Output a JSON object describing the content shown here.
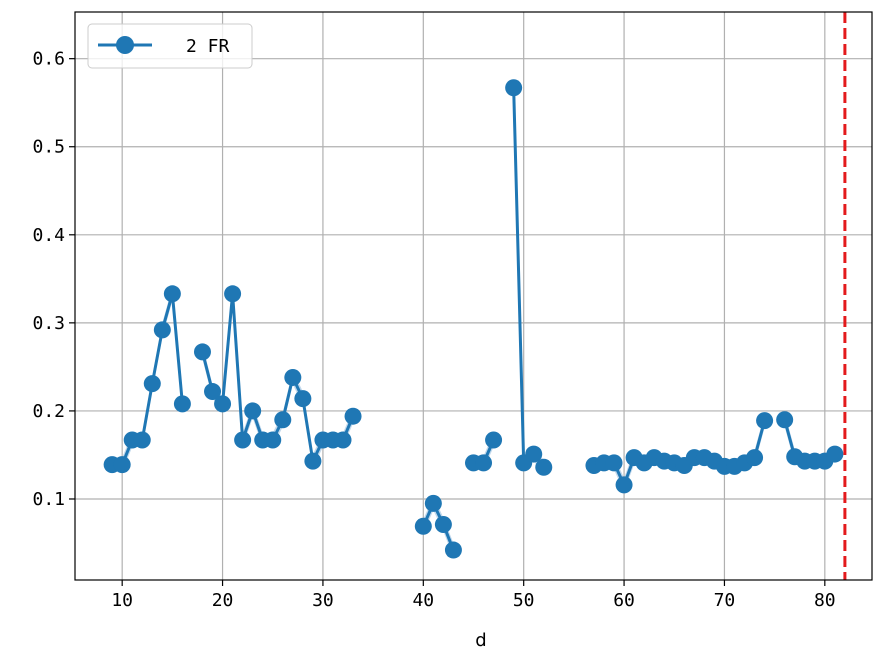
{
  "chart_data": {
    "type": "line",
    "xlabel": "d",
    "ylabel": "",
    "xlim": [
      5.3,
      84.7
    ],
    "ylim": [
      0.008,
      0.653
    ],
    "xticks": [
      10,
      20,
      30,
      40,
      50,
      60,
      70,
      80
    ],
    "yticks": [
      0.1,
      0.2,
      0.3,
      0.4,
      0.5,
      0.6
    ],
    "xtick_labels": [
      "10",
      "20",
      "30",
      "40",
      "50",
      "60",
      "70",
      "80"
    ],
    "ytick_labels": [
      "0.1",
      "0.2",
      "0.3",
      "0.4",
      "0.5",
      "0.6"
    ],
    "grid": true,
    "legend_position": "top-left",
    "vline": {
      "x": 82,
      "color": "#e31a1c",
      "style": "dashed"
    },
    "series": [
      {
        "name": "2 FR",
        "color": "#1f77b4",
        "band_color": "#a6c8e4",
        "segments": [
          [
            {
              "x": 9,
              "y": 0.139
            },
            {
              "x": 10,
              "y": 0.139
            },
            {
              "x": 11,
              "y": 0.167
            },
            {
              "x": 12,
              "y": 0.167
            },
            {
              "x": 13,
              "y": 0.231
            },
            {
              "x": 14,
              "y": 0.292
            },
            {
              "x": 15,
              "y": 0.333
            },
            {
              "x": 16,
              "y": 0.208
            }
          ],
          [
            {
              "x": 18,
              "y": 0.267
            },
            {
              "x": 19,
              "y": 0.222
            },
            {
              "x": 20,
              "y": 0.208
            },
            {
              "x": 21,
              "y": 0.333
            },
            {
              "x": 22,
              "y": 0.167
            },
            {
              "x": 23,
              "y": 0.2
            },
            {
              "x": 24,
              "y": 0.167
            },
            {
              "x": 25,
              "y": 0.167
            },
            {
              "x": 26,
              "y": 0.19
            },
            {
              "x": 27,
              "y": 0.238
            },
            {
              "x": 28,
              "y": 0.214
            },
            {
              "x": 29,
              "y": 0.143
            },
            {
              "x": 30,
              "y": 0.167
            },
            {
              "x": 31,
              "y": 0.167
            },
            {
              "x": 32,
              "y": 0.167
            },
            {
              "x": 33,
              "y": 0.194
            }
          ],
          [
            {
              "x": 40,
              "y": 0.069
            },
            {
              "x": 41,
              "y": 0.095
            },
            {
              "x": 42,
              "y": 0.071
            },
            {
              "x": 43,
              "y": 0.042
            }
          ],
          [
            {
              "x": 45,
              "y": 0.141
            },
            {
              "x": 46,
              "y": 0.141
            },
            {
              "x": 47,
              "y": 0.167
            }
          ],
          [
            {
              "x": 49,
              "y": 0.567
            },
            {
              "x": 50,
              "y": 0.141
            },
            {
              "x": 51,
              "y": 0.151
            },
            {
              "x": 52,
              "y": 0.136
            }
          ],
          [
            {
              "x": 57,
              "y": 0.138
            },
            {
              "x": 58,
              "y": 0.141
            },
            {
              "x": 59,
              "y": 0.141
            },
            {
              "x": 60,
              "y": 0.116
            },
            {
              "x": 61,
              "y": 0.147
            },
            {
              "x": 62,
              "y": 0.141
            },
            {
              "x": 63,
              "y": 0.147
            },
            {
              "x": 64,
              "y": 0.143
            },
            {
              "x": 65,
              "y": 0.141
            },
            {
              "x": 66,
              "y": 0.138
            },
            {
              "x": 67,
              "y": 0.147
            },
            {
              "x": 68,
              "y": 0.147
            },
            {
              "x": 69,
              "y": 0.143
            },
            {
              "x": 70,
              "y": 0.137
            },
            {
              "x": 71,
              "y": 0.137
            },
            {
              "x": 72,
              "y": 0.141
            },
            {
              "x": 73,
              "y": 0.147
            },
            {
              "x": 74,
              "y": 0.189
            }
          ],
          [
            {
              "x": 76,
              "y": 0.19
            },
            {
              "x": 77,
              "y": 0.148
            },
            {
              "x": 78,
              "y": 0.143
            },
            {
              "x": 79,
              "y": 0.143
            },
            {
              "x": 80,
              "y": 0.143
            },
            {
              "x": 81,
              "y": 0.151
            }
          ]
        ]
      }
    ]
  }
}
